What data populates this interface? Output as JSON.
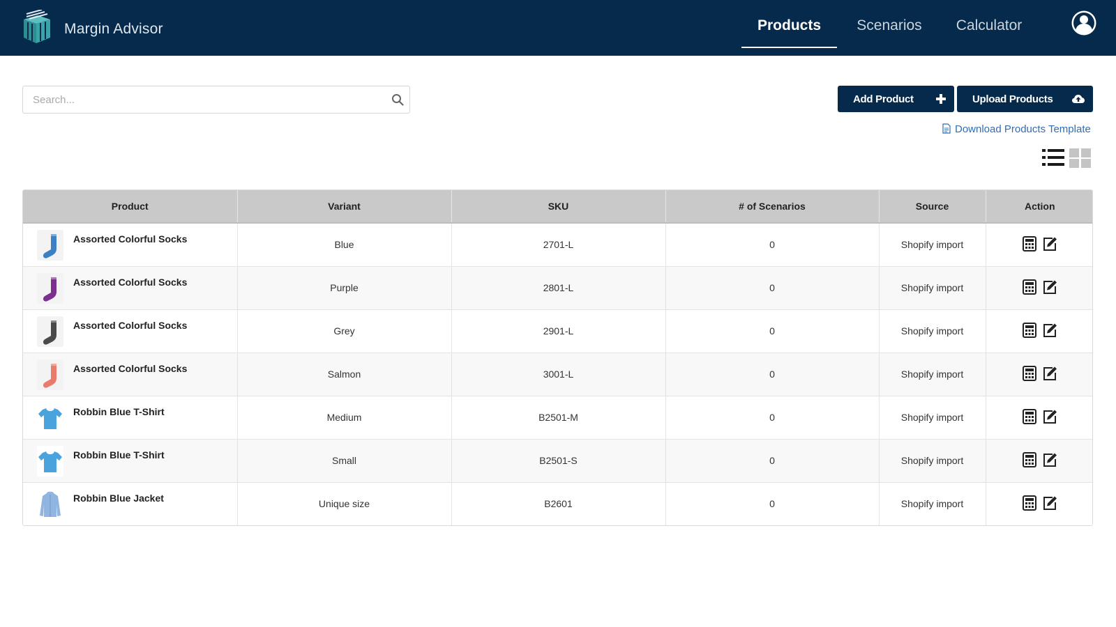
{
  "header": {
    "brand": "Margin Advisor",
    "tabs": [
      {
        "label": "Products",
        "active": true
      },
      {
        "label": "Scenarios",
        "active": false
      },
      {
        "label": "Calculator",
        "active": false
      }
    ],
    "colors": {
      "bar": "#062a4b",
      "logo": "#3a9b9e"
    }
  },
  "toolbar": {
    "search_placeholder": "Search...",
    "add_label": "Add Product",
    "upload_label": "Upload Products",
    "download_label": "Download Products Template"
  },
  "table": {
    "columns": [
      "Product",
      "Variant",
      "SKU",
      "# of Scenarios",
      "Source",
      "Action"
    ],
    "rows": [
      {
        "product": "Assorted Colorful Socks",
        "variant": "Blue",
        "sku": "2701-L",
        "scenarios": "0",
        "source": "Shopify import",
        "thumb": "sock-icon",
        "color": "#3b7fc4"
      },
      {
        "product": "Assorted Colorful Socks",
        "variant": "Purple",
        "sku": "2801-L",
        "scenarios": "0",
        "source": "Shopify import",
        "thumb": "sock-icon",
        "color": "#7b2f8f"
      },
      {
        "product": "Assorted Colorful Socks",
        "variant": "Grey",
        "sku": "2901-L",
        "scenarios": "0",
        "source": "Shopify import",
        "thumb": "sock-icon",
        "color": "#4a4a4a"
      },
      {
        "product": "Assorted Colorful Socks",
        "variant": "Salmon",
        "sku": "3001-L",
        "scenarios": "0",
        "source": "Shopify import",
        "thumb": "sock-icon",
        "color": "#ea7a6b"
      },
      {
        "product": "Robbin Blue T-Shirt",
        "variant": "Medium",
        "sku": "B2501-M",
        "scenarios": "0",
        "source": "Shopify import",
        "thumb": "tshirt-icon",
        "color": "#4aa3dc"
      },
      {
        "product": "Robbin Blue T-Shirt",
        "variant": "Small",
        "sku": "B2501-S",
        "scenarios": "0",
        "source": "Shopify import",
        "thumb": "tshirt-icon",
        "color": "#4aa3dc"
      },
      {
        "product": "Robbin Blue Jacket",
        "variant": "Unique size",
        "sku": "B2601",
        "scenarios": "0",
        "source": "Shopify import",
        "thumb": "jacket-icon",
        "color": "#8fb5e0"
      }
    ]
  }
}
